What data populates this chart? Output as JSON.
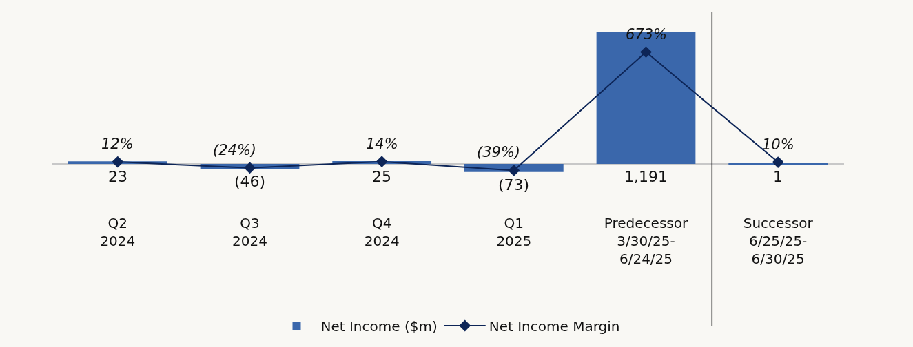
{
  "chart_data": {
    "type": "bar",
    "categories": [
      "Q2\n2024",
      "Q3\n2024",
      "Q4\n2024",
      "Q1\n2025",
      "Predecessor\n3/30/25-\n6/24/25",
      "Successor\n6/25/25-\n6/30/25"
    ],
    "series": [
      {
        "name": "Net Income ($m)",
        "color": "#3a67ab",
        "values": [
          23,
          -46,
          25,
          -73,
          1191,
          1
        ],
        "value_labels": [
          "23",
          "(46)",
          "25",
          "(73)",
          "1,191",
          "1"
        ]
      },
      {
        "name": "Net Income Margin",
        "type": "line",
        "axis": "y2",
        "color": "#0d2557",
        "marker": "diamond",
        "values": [
          12,
          -24,
          14,
          -39,
          673,
          10
        ],
        "value_labels": [
          "12%",
          "(24%)",
          "14%",
          "(39%)",
          "673%",
          "10%"
        ]
      }
    ],
    "legend": "bottom"
  }
}
